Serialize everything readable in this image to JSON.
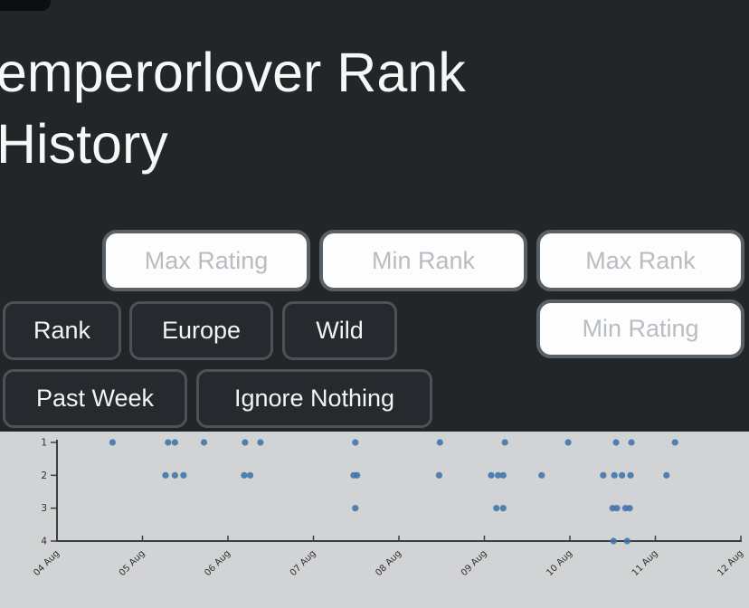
{
  "page": {
    "title": "emperorlover Rank History"
  },
  "filters": {
    "inputs": [
      {
        "id": "max-rating",
        "placeholder": "Max Rating",
        "value": ""
      },
      {
        "id": "min-rank",
        "placeholder": "Min Rank",
        "value": ""
      },
      {
        "id": "max-rank",
        "placeholder": "Max Rank",
        "value": ""
      },
      {
        "id": "min-rating",
        "placeholder": "Min Rating",
        "value": ""
      }
    ],
    "buttons": [
      {
        "id": "rank-metric",
        "label": "Rank"
      },
      {
        "id": "region",
        "label": "Europe"
      },
      {
        "id": "format",
        "label": "Wild"
      },
      {
        "id": "timeframe",
        "label": "Past Week"
      },
      {
        "id": "ignore",
        "label": "Ignore Nothing"
      }
    ]
  },
  "chart_data": {
    "type": "scatter",
    "title": "",
    "xlabel": "",
    "ylabel": "",
    "x_unit": "day of August",
    "x_tick_days": [
      4,
      5,
      6,
      7,
      8,
      9,
      10,
      11,
      12
    ],
    "x_tick_labels": [
      "04 Aug",
      "05 Aug",
      "06 Aug",
      "07 Aug",
      "08 Aug",
      "09 Aug",
      "10 Aug",
      "11 Aug",
      "12 Aug"
    ],
    "y_ticks": [
      1,
      2,
      3,
      4
    ],
    "xlim": [
      4,
      12
    ],
    "ylim": [
      1,
      4
    ],
    "y_inverted": true,
    "grid": false,
    "legend": false,
    "marker_color": "#3e74ab",
    "plot_background": "#d2d3d4",
    "axis_color": "#3c3e40",
    "points": [
      [
        4.65,
        1
      ],
      [
        5.3,
        1
      ],
      [
        5.38,
        1
      ],
      [
        5.72,
        1
      ],
      [
        6.2,
        1
      ],
      [
        6.38,
        1
      ],
      [
        7.49,
        1
      ],
      [
        8.48,
        1
      ],
      [
        9.24,
        1
      ],
      [
        9.98,
        1
      ],
      [
        10.54,
        1
      ],
      [
        10.72,
        1
      ],
      [
        11.23,
        1
      ],
      [
        5.27,
        2
      ],
      [
        5.38,
        2
      ],
      [
        5.48,
        2
      ],
      [
        6.19,
        2
      ],
      [
        6.26,
        2
      ],
      [
        7.47,
        2
      ],
      [
        7.51,
        2
      ],
      [
        8.47,
        2
      ],
      [
        9.08,
        2
      ],
      [
        9.16,
        2
      ],
      [
        9.22,
        2
      ],
      [
        9.67,
        2
      ],
      [
        10.39,
        2
      ],
      [
        10.52,
        2
      ],
      [
        10.61,
        2
      ],
      [
        10.71,
        2
      ],
      [
        11.13,
        2
      ],
      [
        7.49,
        3
      ],
      [
        9.14,
        3
      ],
      [
        9.22,
        3
      ],
      [
        10.5,
        3
      ],
      [
        10.55,
        3
      ],
      [
        10.65,
        3
      ],
      [
        10.7,
        3
      ],
      [
        10.51,
        4
      ],
      [
        10.67,
        4
      ]
    ]
  }
}
